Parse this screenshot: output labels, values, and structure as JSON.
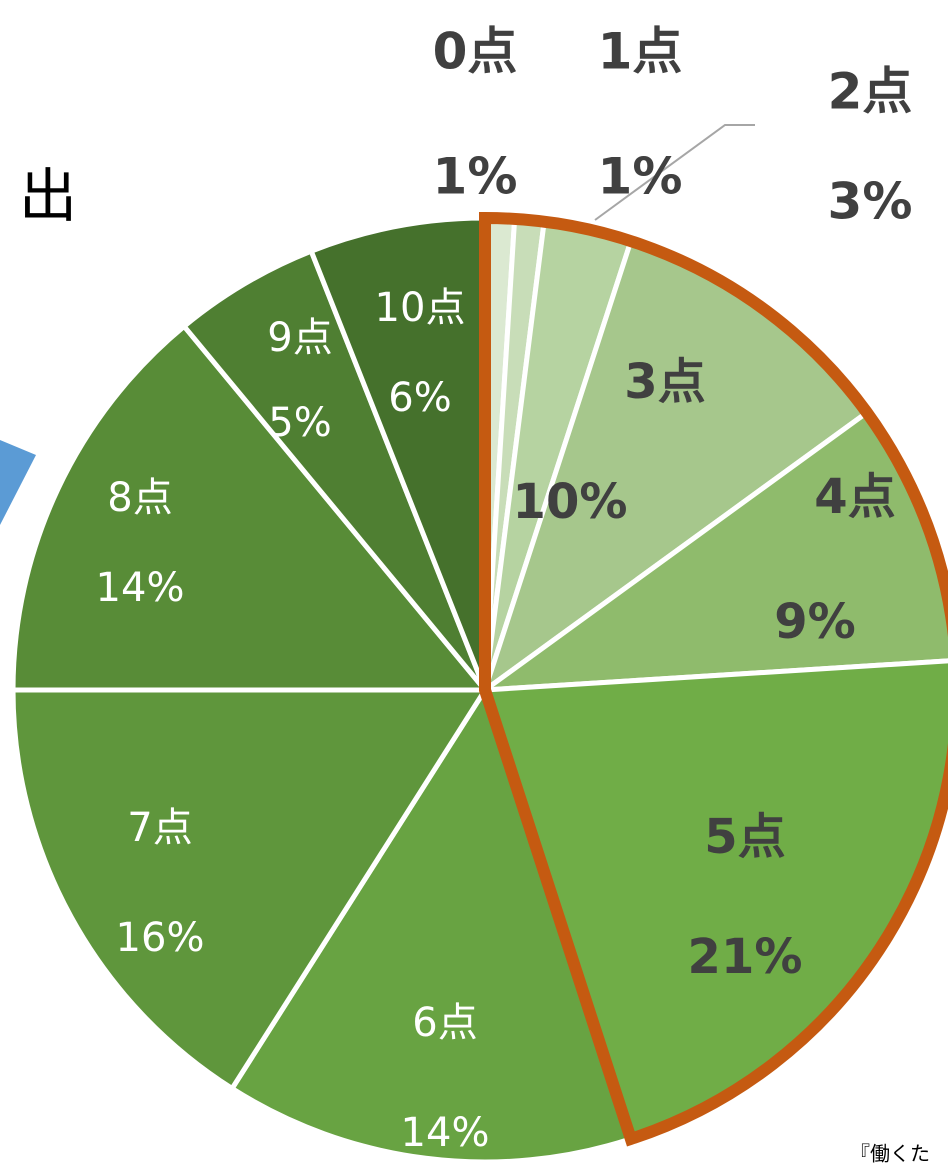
{
  "chart_data": {
    "type": "pie",
    "categories": [
      "0点",
      "1点",
      "2点",
      "3点",
      "4点",
      "5点",
      "6点",
      "7点",
      "8点",
      "9点",
      "10点"
    ],
    "values": [
      1,
      1,
      3,
      10,
      9,
      21,
      14,
      16,
      14,
      5,
      6
    ],
    "value_labels": [
      "1%",
      "1%",
      "3%",
      "10%",
      "9%",
      "21%",
      "14%",
      "16%",
      "14%",
      "5%",
      "6%"
    ],
    "colors": [
      "#dbe9d1",
      "#c8ddb8",
      "#b6d3a1",
      "#a6c78c",
      "#8fbb6c",
      "#70ad47",
      "#68a342",
      "#5f963c",
      "#588c37",
      "#4f7f32",
      "#45712c"
    ],
    "highlight": {
      "categories": [
        "0点",
        "1点",
        "2点",
        "3点",
        "4点",
        "5点"
      ],
      "color": "#c55a11"
    },
    "annotations": [
      "出",
      "『働くた"
    ]
  }
}
